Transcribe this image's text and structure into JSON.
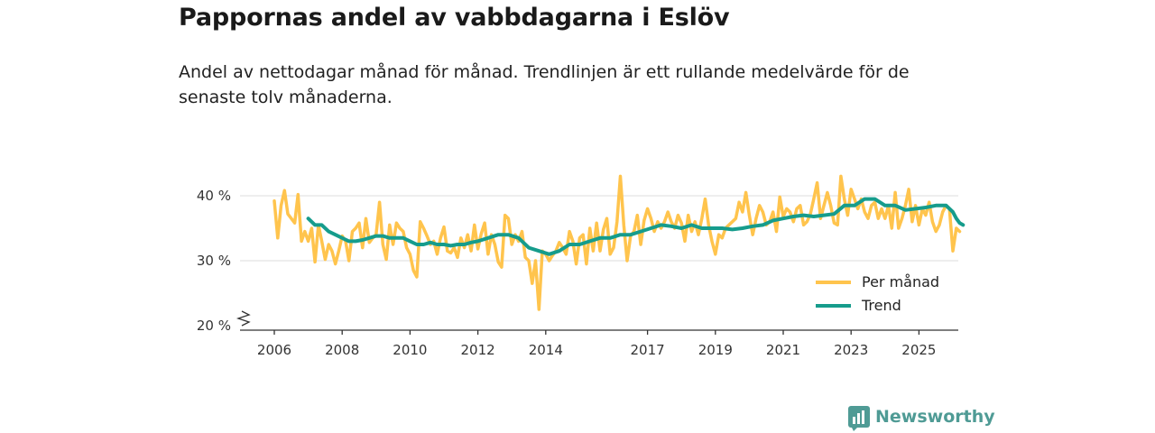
{
  "title": "Pappornas andel av vabbdagarna i Eslöv",
  "subtitle": "Andel av nettodagar månad för månad. Trendlinjen är ett rullande medelvärde för de senaste tolv månaderna.",
  "brand": "Newsworthy",
  "colors": {
    "monthly": "#ffc44d",
    "trend": "#169c8c",
    "grid": "#dddddd",
    "axis": "#333333",
    "brand": "#4f9b95"
  },
  "chart_data": {
    "type": "line",
    "title": "Pappornas andel av vabbdagarna i Eslöv",
    "xlabel": "",
    "ylabel": "",
    "ylim": [
      20,
      41.5
    ],
    "xlim": [
      2005.5,
      2026.3
    ],
    "y_axis_break": true,
    "yticks": [
      20,
      30,
      40
    ],
    "ytick_labels": [
      "20 %",
      "30 %",
      "40 %"
    ],
    "xticks": [
      2006,
      2008,
      2010,
      2012,
      2014,
      2017,
      2019,
      2021,
      2023,
      2025
    ],
    "xtick_labels": [
      "2006",
      "2008",
      "2010",
      "2012",
      "2014",
      "2017",
      "2019",
      "2021",
      "2023",
      "2025"
    ],
    "legend_position": "bottom-right",
    "series": [
      {
        "name": "Per månad",
        "points": [
          [
            2006.0,
            39.2
          ],
          [
            2006.1,
            33.5
          ],
          [
            2006.2,
            38.5
          ],
          [
            2006.3,
            40.8
          ],
          [
            2006.4,
            37.2
          ],
          [
            2006.5,
            36.5
          ],
          [
            2006.6,
            35.8
          ],
          [
            2006.7,
            40.2
          ],
          [
            2006.8,
            33.0
          ],
          [
            2006.9,
            34.5
          ],
          [
            2007.0,
            33.0
          ],
          [
            2007.1,
            35.0
          ],
          [
            2007.2,
            29.8
          ],
          [
            2007.3,
            35.5
          ],
          [
            2007.4,
            33.0
          ],
          [
            2007.5,
            30.2
          ],
          [
            2007.6,
            32.5
          ],
          [
            2007.7,
            31.5
          ],
          [
            2007.8,
            29.5
          ],
          [
            2007.9,
            31.5
          ],
          [
            2008.0,
            33.8
          ],
          [
            2008.1,
            33.0
          ],
          [
            2008.2,
            30.0
          ],
          [
            2008.3,
            34.5
          ],
          [
            2008.4,
            35.0
          ],
          [
            2008.5,
            35.8
          ],
          [
            2008.6,
            32.0
          ],
          [
            2008.7,
            36.5
          ],
          [
            2008.8,
            32.8
          ],
          [
            2008.9,
            33.5
          ],
          [
            2009.0,
            34.0
          ],
          [
            2009.1,
            39.0
          ],
          [
            2009.2,
            32.5
          ],
          [
            2009.3,
            30.2
          ],
          [
            2009.4,
            35.5
          ],
          [
            2009.5,
            32.5
          ],
          [
            2009.6,
            35.8
          ],
          [
            2009.7,
            35.0
          ],
          [
            2009.8,
            34.5
          ],
          [
            2009.9,
            32.0
          ],
          [
            2010.0,
            31.0
          ],
          [
            2010.1,
            28.5
          ],
          [
            2010.2,
            27.5
          ],
          [
            2010.3,
            36.0
          ],
          [
            2010.4,
            35.0
          ],
          [
            2010.5,
            33.8
          ],
          [
            2010.6,
            32.5
          ],
          [
            2010.7,
            33.0
          ],
          [
            2010.8,
            31.0
          ],
          [
            2010.9,
            33.5
          ],
          [
            2011.0,
            35.2
          ],
          [
            2011.1,
            31.5
          ],
          [
            2011.2,
            31.2
          ],
          [
            2011.3,
            32.0
          ],
          [
            2011.4,
            30.5
          ],
          [
            2011.5,
            33.5
          ],
          [
            2011.6,
            32.0
          ],
          [
            2011.7,
            34.0
          ],
          [
            2011.8,
            31.5
          ],
          [
            2011.9,
            35.5
          ],
          [
            2012.0,
            31.8
          ],
          [
            2012.1,
            34.2
          ],
          [
            2012.2,
            35.8
          ],
          [
            2012.3,
            31.0
          ],
          [
            2012.4,
            34.0
          ],
          [
            2012.5,
            32.5
          ],
          [
            2012.6,
            29.8
          ],
          [
            2012.7,
            29.0
          ],
          [
            2012.8,
            37.0
          ],
          [
            2012.9,
            36.5
          ],
          [
            2013.0,
            32.5
          ],
          [
            2013.1,
            34.0
          ],
          [
            2013.2,
            33.0
          ],
          [
            2013.3,
            34.5
          ],
          [
            2013.4,
            30.5
          ],
          [
            2013.5,
            30.0
          ],
          [
            2013.6,
            26.5
          ],
          [
            2013.7,
            30.0
          ],
          [
            2013.8,
            22.5
          ],
          [
            2013.9,
            31.5
          ],
          [
            2014.0,
            31.0
          ],
          [
            2014.1,
            30.0
          ],
          [
            2014.2,
            30.8
          ],
          [
            2014.3,
            31.5
          ],
          [
            2014.4,
            32.8
          ],
          [
            2014.5,
            32.0
          ],
          [
            2014.6,
            31.0
          ],
          [
            2014.7,
            34.5
          ],
          [
            2014.8,
            33.0
          ],
          [
            2014.9,
            29.5
          ],
          [
            2015.0,
            33.5
          ],
          [
            2015.1,
            34.0
          ],
          [
            2015.2,
            29.5
          ],
          [
            2015.3,
            35.0
          ],
          [
            2015.4,
            31.5
          ],
          [
            2015.5,
            35.8
          ],
          [
            2015.6,
            31.5
          ],
          [
            2015.7,
            34.8
          ],
          [
            2015.8,
            36.5
          ],
          [
            2015.9,
            31.0
          ],
          [
            2016.0,
            32.0
          ],
          [
            2016.1,
            36.0
          ],
          [
            2016.2,
            43.0
          ],
          [
            2016.3,
            35.5
          ],
          [
            2016.4,
            30.0
          ],
          [
            2016.5,
            33.8
          ],
          [
            2016.6,
            34.5
          ],
          [
            2016.7,
            37.0
          ],
          [
            2016.8,
            32.5
          ],
          [
            2016.9,
            36.2
          ],
          [
            2017.0,
            38.0
          ],
          [
            2017.1,
            36.5
          ],
          [
            2017.2,
            34.5
          ],
          [
            2017.3,
            36.0
          ],
          [
            2017.4,
            35.0
          ],
          [
            2017.5,
            36.0
          ],
          [
            2017.6,
            37.5
          ],
          [
            2017.7,
            36.0
          ],
          [
            2017.8,
            35.0
          ],
          [
            2017.9,
            37.0
          ],
          [
            2018.0,
            35.8
          ],
          [
            2018.1,
            33.0
          ],
          [
            2018.2,
            37.0
          ],
          [
            2018.3,
            34.5
          ],
          [
            2018.4,
            36.0
          ],
          [
            2018.5,
            34.0
          ],
          [
            2018.6,
            36.5
          ],
          [
            2018.7,
            39.5
          ],
          [
            2018.8,
            35.5
          ],
          [
            2018.9,
            33.0
          ],
          [
            2019.0,
            31.0
          ],
          [
            2019.1,
            34.0
          ],
          [
            2019.2,
            33.5
          ],
          [
            2019.3,
            35.0
          ],
          [
            2019.4,
            35.5
          ],
          [
            2019.5,
            36.0
          ],
          [
            2019.6,
            36.5
          ],
          [
            2019.7,
            39.0
          ],
          [
            2019.8,
            37.5
          ],
          [
            2019.9,
            40.5
          ],
          [
            2020.0,
            37.0
          ],
          [
            2020.1,
            34.0
          ],
          [
            2020.2,
            36.5
          ],
          [
            2020.3,
            38.5
          ],
          [
            2020.4,
            37.5
          ],
          [
            2020.5,
            35.5
          ],
          [
            2020.6,
            36.0
          ],
          [
            2020.7,
            37.5
          ],
          [
            2020.8,
            34.5
          ],
          [
            2020.9,
            39.8
          ],
          [
            2021.0,
            36.8
          ],
          [
            2021.1,
            38.0
          ],
          [
            2021.2,
            37.5
          ],
          [
            2021.3,
            36.0
          ],
          [
            2021.4,
            38.0
          ],
          [
            2021.5,
            38.5
          ],
          [
            2021.6,
            35.5
          ],
          [
            2021.7,
            36.0
          ],
          [
            2021.8,
            37.2
          ],
          [
            2021.9,
            39.5
          ],
          [
            2022.0,
            42.0
          ],
          [
            2022.1,
            36.5
          ],
          [
            2022.2,
            38.5
          ],
          [
            2022.3,
            40.5
          ],
          [
            2022.4,
            38.5
          ],
          [
            2022.5,
            35.8
          ],
          [
            2022.6,
            35.5
          ],
          [
            2022.7,
            43.0
          ],
          [
            2022.8,
            39.5
          ],
          [
            2022.9,
            37.0
          ],
          [
            2023.0,
            41.0
          ],
          [
            2023.1,
            39.5
          ],
          [
            2023.2,
            38.0
          ],
          [
            2023.3,
            39.5
          ],
          [
            2023.4,
            37.5
          ],
          [
            2023.5,
            36.5
          ],
          [
            2023.6,
            38.5
          ],
          [
            2023.7,
            39.0
          ],
          [
            2023.8,
            36.5
          ],
          [
            2023.9,
            38.0
          ],
          [
            2024.0,
            36.5
          ],
          [
            2024.1,
            38.5
          ],
          [
            2024.2,
            35.0
          ],
          [
            2024.3,
            40.5
          ],
          [
            2024.4,
            35.0
          ],
          [
            2024.5,
            36.5
          ],
          [
            2024.6,
            38.5
          ],
          [
            2024.7,
            41.0
          ],
          [
            2024.8,
            36.0
          ],
          [
            2024.9,
            38.5
          ],
          [
            2025.0,
            35.5
          ],
          [
            2025.1,
            38.0
          ],
          [
            2025.2,
            37.0
          ],
          [
            2025.3,
            39.0
          ],
          [
            2025.4,
            36.0
          ],
          [
            2025.5,
            34.5
          ],
          [
            2025.6,
            35.5
          ],
          [
            2025.7,
            37.5
          ],
          [
            2025.8,
            38.5
          ],
          [
            2025.9,
            38.0
          ],
          [
            2026.0,
            31.5
          ],
          [
            2026.1,
            35.0
          ],
          [
            2026.2,
            34.5
          ]
        ]
      },
      {
        "name": "Trend",
        "points": [
          [
            2007.0,
            36.5
          ],
          [
            2007.2,
            35.5
          ],
          [
            2007.4,
            35.5
          ],
          [
            2007.6,
            34.5
          ],
          [
            2007.8,
            34.0
          ],
          [
            2008.0,
            33.5
          ],
          [
            2008.2,
            33.0
          ],
          [
            2008.4,
            33.0
          ],
          [
            2008.6,
            33.2
          ],
          [
            2008.8,
            33.5
          ],
          [
            2009.0,
            33.8
          ],
          [
            2009.2,
            33.8
          ],
          [
            2009.4,
            33.5
          ],
          [
            2009.6,
            33.5
          ],
          [
            2009.8,
            33.5
          ],
          [
            2010.0,
            33.0
          ],
          [
            2010.2,
            32.5
          ],
          [
            2010.4,
            32.5
          ],
          [
            2010.6,
            32.8
          ],
          [
            2010.8,
            32.5
          ],
          [
            2011.0,
            32.5
          ],
          [
            2011.2,
            32.3
          ],
          [
            2011.4,
            32.5
          ],
          [
            2011.6,
            32.5
          ],
          [
            2011.8,
            32.8
          ],
          [
            2012.0,
            33.0
          ],
          [
            2012.3,
            33.5
          ],
          [
            2012.6,
            34.0
          ],
          [
            2012.9,
            34.0
          ],
          [
            2013.2,
            33.5
          ],
          [
            2013.5,
            32.0
          ],
          [
            2013.8,
            31.5
          ],
          [
            2014.1,
            31.0
          ],
          [
            2014.4,
            31.5
          ],
          [
            2014.7,
            32.5
          ],
          [
            2015.0,
            32.5
          ],
          [
            2015.3,
            33.0
          ],
          [
            2015.6,
            33.5
          ],
          [
            2015.9,
            33.5
          ],
          [
            2016.2,
            34.0
          ],
          [
            2016.5,
            34.0
          ],
          [
            2016.8,
            34.5
          ],
          [
            2017.1,
            35.0
          ],
          [
            2017.4,
            35.5
          ],
          [
            2017.7,
            35.3
          ],
          [
            2018.0,
            35.0
          ],
          [
            2018.3,
            35.5
          ],
          [
            2018.6,
            35.0
          ],
          [
            2018.9,
            35.0
          ],
          [
            2019.2,
            35.0
          ],
          [
            2019.5,
            34.8
          ],
          [
            2019.8,
            35.0
          ],
          [
            2020.1,
            35.3
          ],
          [
            2020.4,
            35.5
          ],
          [
            2020.7,
            36.2
          ],
          [
            2021.0,
            36.5
          ],
          [
            2021.3,
            36.8
          ],
          [
            2021.6,
            37.0
          ],
          [
            2021.9,
            36.8
          ],
          [
            2022.2,
            37.0
          ],
          [
            2022.5,
            37.2
          ],
          [
            2022.8,
            38.5
          ],
          [
            2023.1,
            38.5
          ],
          [
            2023.4,
            39.5
          ],
          [
            2023.7,
            39.5
          ],
          [
            2024.0,
            38.5
          ],
          [
            2024.3,
            38.5
          ],
          [
            2024.6,
            37.8
          ],
          [
            2024.9,
            38.0
          ],
          [
            2025.2,
            38.2
          ],
          [
            2025.5,
            38.5
          ],
          [
            2025.8,
            38.5
          ],
          [
            2026.0,
            37.5
          ],
          [
            2026.1,
            36.5
          ],
          [
            2026.2,
            35.8
          ],
          [
            2026.3,
            35.5
          ]
        ]
      }
    ]
  }
}
